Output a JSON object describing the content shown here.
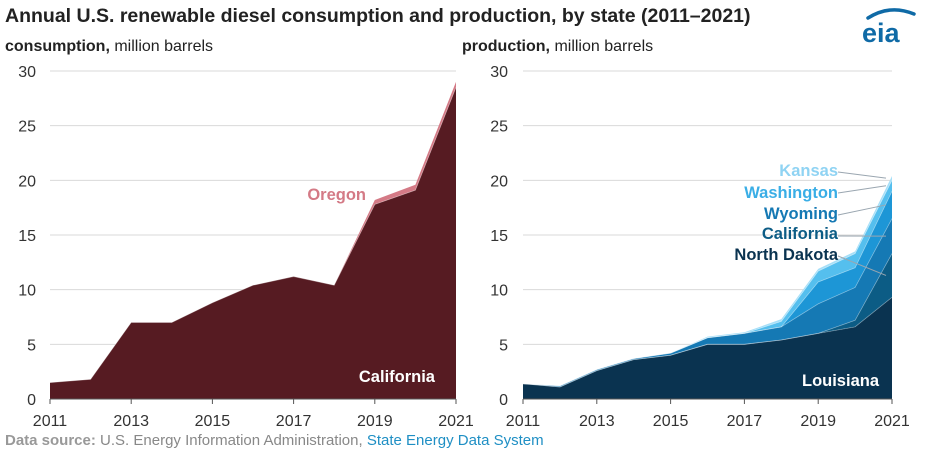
{
  "title": "Annual U.S. renewable diesel consumption and production, by state (2011–2021)",
  "logo_text": "eia",
  "source": {
    "label": "Data source:",
    "text": "U.S. Energy Information Administration,",
    "link": "State Energy Data System"
  },
  "colors": {
    "california_consumption": "#561b22",
    "oregon": "#d47a86",
    "louisiana": "#0a3350",
    "north_dakota": "#0c5c85",
    "california_production": "#1579b4",
    "wyoming": "#1d96d6",
    "washington": "#55bfee",
    "kansas": "#a6dff8",
    "axis_text": "#333333",
    "grid": "#d9d9d9",
    "logo": "#0f6aa6"
  },
  "chart_data": [
    {
      "type": "area",
      "stacked": true,
      "subtitle_bold": "consumption,",
      "subtitle_unit": "million barrels",
      "x": [
        2011,
        2012,
        2013,
        2014,
        2015,
        2016,
        2017,
        2018,
        2019,
        2020,
        2021
      ],
      "xticks": [
        2011,
        2013,
        2015,
        2017,
        2019,
        2021
      ],
      "ylim": [
        0,
        30
      ],
      "yticks": [
        0,
        5,
        10,
        15,
        20,
        25,
        30
      ],
      "grid": true,
      "series": [
        {
          "name": "California",
          "color_key": "california_consumption",
          "label_color": "#ffffff",
          "values": [
            1.5,
            1.8,
            7.0,
            7.0,
            8.8,
            10.4,
            11.2,
            10.4,
            17.8,
            19.1,
            28.5
          ]
        },
        {
          "name": "Oregon",
          "color_key": "oregon",
          "label_color": "#d47a86",
          "values": [
            0,
            0,
            0,
            0,
            0,
            0,
            0,
            0,
            0.4,
            0.5,
            0.5
          ]
        }
      ]
    },
    {
      "type": "area",
      "stacked": true,
      "subtitle_bold": "production,",
      "subtitle_unit": "million barrels",
      "x": [
        2011,
        2012,
        2013,
        2014,
        2015,
        2016,
        2017,
        2018,
        2019,
        2020,
        2021
      ],
      "xticks": [
        2011,
        2013,
        2015,
        2017,
        2019,
        2021
      ],
      "ylim": [
        0,
        30
      ],
      "yticks": [
        0,
        5,
        10,
        15,
        20,
        25,
        30
      ],
      "grid": true,
      "series": [
        {
          "name": "Louisiana",
          "color_key": "louisiana",
          "label_color": "#ffffff",
          "values": [
            1.4,
            1.1,
            2.6,
            3.6,
            4.0,
            5.0,
            5.0,
            5.4,
            6.0,
            6.6,
            9.3
          ]
        },
        {
          "name": "North Dakota",
          "color_key": "north_dakota",
          "label_color": "#0a3350",
          "values": [
            0,
            0,
            0,
            0,
            0,
            0,
            0,
            0,
            0,
            0.6,
            4.0
          ]
        },
        {
          "name": "California",
          "color_key": "california_production",
          "label_color": "#0c5c85",
          "values": [
            0,
            0.1,
            0.1,
            0.1,
            0.2,
            0.6,
            1.0,
            1.2,
            2.7,
            3.0,
            3.2
          ]
        },
        {
          "name": "Wyoming",
          "color_key": "wyoming",
          "label_color": "#1579b4",
          "values": [
            0,
            0,
            0,
            0,
            0,
            0,
            0,
            0,
            2.0,
            1.8,
            2.5
          ]
        },
        {
          "name": "Washington",
          "color_key": "washington",
          "label_color": "#3aaee6",
          "values": [
            0,
            0,
            0,
            0,
            0,
            0,
            0,
            0.5,
            1.0,
            1.3,
            1.0
          ]
        },
        {
          "name": "Kansas",
          "color_key": "kansas",
          "label_color": "#8fd3f3",
          "values": [
            0,
            0,
            0,
            0,
            0,
            0.1,
            0.1,
            0.2,
            0.2,
            0.2,
            0.4
          ]
        }
      ]
    }
  ]
}
